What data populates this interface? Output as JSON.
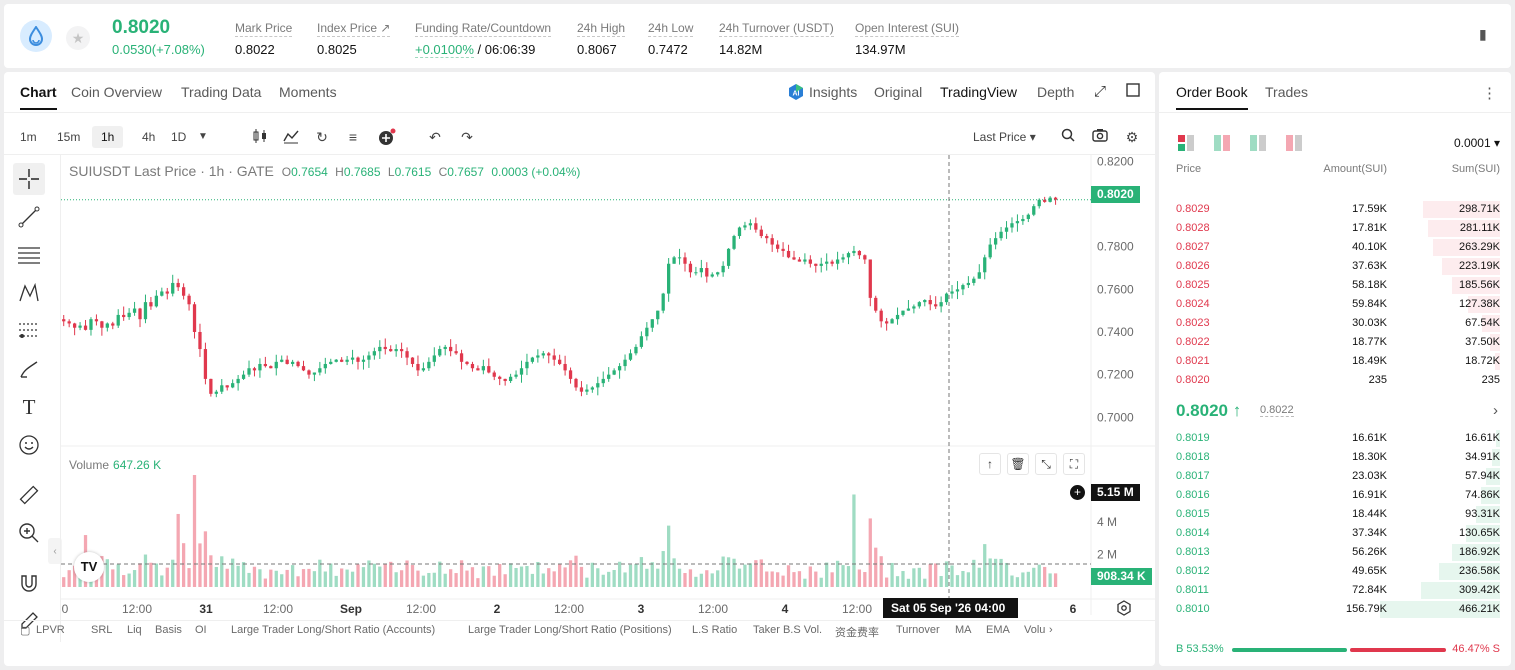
{
  "header": {
    "price": "0.8020",
    "change": "0.0530(+7.08%)",
    "stats": [
      {
        "label": "Mark Price",
        "value": "0.8022"
      },
      {
        "label": "Index Price ↗",
        "value": "0.8025"
      },
      {
        "label": "Funding Rate/Countdown",
        "rate": "+0.0100%",
        "countdown": " / 06:06:39"
      },
      {
        "label": "24h High",
        "value": "0.8067"
      },
      {
        "label": "24h Low",
        "value": "0.7472"
      },
      {
        "label": "24h Turnover (USDT)",
        "value": "14.82M"
      },
      {
        "label": "Open Interest (SUI)",
        "value": "134.97M"
      }
    ]
  },
  "chart_panel": {
    "tabs": [
      "Chart",
      "Coin Overview",
      "Trading Data",
      "Moments"
    ],
    "right_tabs": [
      "Insights",
      "Original",
      "TradingView",
      "Depth"
    ],
    "timeframes": [
      "1m",
      "15m",
      "1h",
      "4h",
      "1D"
    ],
    "price_type": "Last Price ▾",
    "symbol_line": "SUIUSDT Last Price · 1h · GATE",
    "ohlc": {
      "O": "0.7654",
      "H": "0.7685",
      "L": "0.7615",
      "C": "0.7657",
      "chg": "0.0003 (+0.04%)"
    },
    "volume_label": "Volume",
    "volume_value": "647.26 K",
    "last_price_tag": "0.8020",
    "cross_volume_tag": "5.15 M",
    "volume_tag": "908.34 K",
    "crosshair_time": "Sat 05 Sep '26   04:00",
    "indicators": [
      "LPVR",
      "SRL",
      "Liq",
      "Basis",
      "OI",
      "Large Trader Long/Short Ratio (Accounts)",
      "Large Trader Long/Short Ratio (Positions)",
      "L.S Ratio",
      "Taker B.S Vol.",
      "资金费率",
      "Turnover",
      "MA",
      "EMA",
      "Volu"
    ]
  },
  "chart_data": {
    "type": "candlestick",
    "symbol": "SUIUSDT",
    "interval": "1h",
    "price_ylim": [
      0.687,
      0.823
    ],
    "price_ticks": [
      "0.8200",
      "0.7800",
      "0.7600",
      "0.7400",
      "0.7200",
      "0.7000"
    ],
    "volume_ticks": [
      "6 M",
      "4 M",
      "2 M"
    ],
    "x_ticks": [
      "0",
      "12:00",
      "31",
      "12:00",
      "Sep",
      "12:00",
      "2",
      "12:00",
      "3",
      "12:00",
      "4",
      "12:00",
      "5",
      "6"
    ],
    "close_series": [
      0.745,
      0.744,
      0.742,
      0.743,
      0.741,
      0.746,
      0.745,
      0.742,
      0.744,
      0.743,
      0.748,
      0.747,
      0.749,
      0.751,
      0.746,
      0.754,
      0.752,
      0.757,
      0.759,
      0.758,
      0.763,
      0.761,
      0.757,
      0.753,
      0.74,
      0.732,
      0.718,
      0.711,
      0.712,
      0.715,
      0.714,
      0.716,
      0.718,
      0.72,
      0.723,
      0.722,
      0.725,
      0.724,
      0.723,
      0.726,
      0.727,
      0.725,
      0.726,
      0.724,
      0.722,
      0.72,
      0.721,
      0.723,
      0.725,
      0.726,
      0.727,
      0.726,
      0.727,
      0.728,
      0.726,
      0.727,
      0.729,
      0.731,
      0.733,
      0.732,
      0.731,
      0.732,
      0.731,
      0.728,
      0.725,
      0.722,
      0.723,
      0.726,
      0.729,
      0.732,
      0.733,
      0.731,
      0.73,
      0.726,
      0.725,
      0.723,
      0.722,
      0.724,
      0.721,
      0.719,
      0.718,
      0.717,
      0.719,
      0.72,
      0.723,
      0.726,
      0.728,
      0.729,
      0.73,
      0.729,
      0.727,
      0.725,
      0.722,
      0.718,
      0.714,
      0.712,
      0.713,
      0.714,
      0.716,
      0.718,
      0.72,
      0.722,
      0.724,
      0.727,
      0.73,
      0.733,
      0.738,
      0.742,
      0.746,
      0.75,
      0.758,
      0.772,
      0.775,
      0.775,
      0.772,
      0.768,
      0.768,
      0.77,
      0.766,
      0.767,
      0.768,
      0.771,
      0.779,
      0.785,
      0.789,
      0.79,
      0.791,
      0.788,
      0.785,
      0.784,
      0.781,
      0.779,
      0.778,
      0.775,
      0.774,
      0.773,
      0.774,
      0.772,
      0.771,
      0.772,
      0.773,
      0.772,
      0.774,
      0.775,
      0.777,
      0.778,
      0.776,
      0.774,
      0.756,
      0.75,
      0.745,
      0.744,
      0.746,
      0.748,
      0.75,
      0.751,
      0.752,
      0.754,
      0.755,
      0.753,
      0.752,
      0.754,
      0.758,
      0.759,
      0.76,
      0.762,
      0.763,
      0.765,
      0.768,
      0.775,
      0.781,
      0.784,
      0.787,
      0.789,
      0.791,
      0.792,
      0.793,
      0.795,
      0.799,
      0.802,
      0.801,
      0.803,
      0.802
    ],
    "volume_notes": "Volume bars per candle, max spike ≈ 6.9 M"
  },
  "order_book": {
    "tabs": [
      "Order Book",
      "Trades"
    ],
    "tick": "0.0001 ▾",
    "cols": [
      "Price",
      "Amount(SUI)",
      "Sum(SUI)"
    ],
    "asks": [
      [
        "0.8029",
        "17.59K",
        "298.71K",
        0.64
      ],
      [
        "0.8028",
        "17.81K",
        "281.11K",
        0.6
      ],
      [
        "0.8027",
        "40.10K",
        "263.29K",
        0.56
      ],
      [
        "0.8026",
        "37.63K",
        "223.19K",
        0.48
      ],
      [
        "0.8025",
        "58.18K",
        "185.56K",
        0.4
      ],
      [
        "0.8024",
        "59.84K",
        "127.38K",
        0.27
      ],
      [
        "0.8023",
        "30.03K",
        "67.54K",
        0.15
      ],
      [
        "0.8022",
        "18.77K",
        "37.50K",
        0.08
      ],
      [
        "0.8021",
        "18.49K",
        "18.72K",
        0.04
      ],
      [
        "0.8020",
        "235",
        "235",
        0.0
      ]
    ],
    "mid_price": "0.8020 ↑",
    "mark": "0.8022",
    "bids": [
      [
        "0.8019",
        "16.61K",
        "16.61K",
        0.03
      ],
      [
        "0.8018",
        "18.30K",
        "34.91K",
        0.07
      ],
      [
        "0.8017",
        "23.03K",
        "57.94K",
        0.12
      ],
      [
        "0.8016",
        "16.91K",
        "74.86K",
        0.16
      ],
      [
        "0.8015",
        "18.44K",
        "93.31K",
        0.2
      ],
      [
        "0.8014",
        "37.34K",
        "130.65K",
        0.28
      ],
      [
        "0.8013",
        "56.26K",
        "186.92K",
        0.4
      ],
      [
        "0.8012",
        "49.65K",
        "236.58K",
        0.51
      ],
      [
        "0.8011",
        "72.84K",
        "309.42K",
        0.66
      ],
      [
        "0.8010",
        "156.79K",
        "466.21K",
        1.0
      ]
    ],
    "buy_ratio": "B 53.53%",
    "sell_ratio": "46.47% S",
    "buy_fraction": 0.5353
  },
  "colors": {
    "up": "#29b277",
    "down": "#e0384d",
    "up_light": "#9fdcc3",
    "down_light": "#f4a7b2"
  }
}
